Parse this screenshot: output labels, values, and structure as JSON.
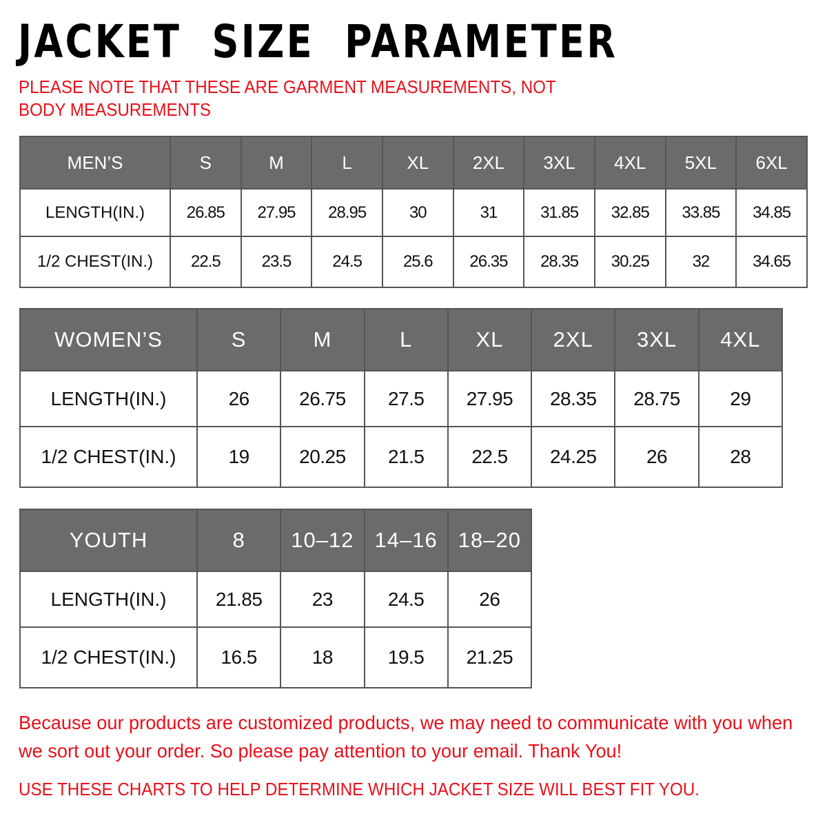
{
  "title": "JACKET  SIZE  PARAMETER",
  "note": "PLEASE NOTE THAT THESE ARE GARMENT MEASUREMENTS, NOT BODY MEASUREMENTS",
  "men": {
    "header": [
      "MEN’S",
      "S",
      "M",
      "L",
      "XL",
      "2XL",
      "3XL",
      "4XL",
      "5XL",
      "6XL"
    ],
    "rows": [
      [
        "LENGTH(IN.)",
        "26.85",
        "27.95",
        "28.95",
        "30",
        "31",
        "31.85",
        "32.85",
        "33.85",
        "34.85"
      ],
      [
        "1/2 CHEST(IN.)",
        "22.5",
        "23.5",
        "24.5",
        "25.6",
        "26.35",
        "28.35",
        "30.25",
        "32",
        "34.65"
      ]
    ]
  },
  "women": {
    "header": [
      "WOMEN’S",
      "S",
      "M",
      "L",
      "XL",
      "2XL",
      "3XL",
      "4XL"
    ],
    "rows": [
      [
        "LENGTH(IN.)",
        "26",
        "26.75",
        "27.5",
        "27.95",
        "28.35",
        "28.75",
        "29"
      ],
      [
        "1/2 CHEST(IN.)",
        "19",
        "20.25",
        "21.5",
        "22.5",
        "24.25",
        "26",
        "28"
      ]
    ]
  },
  "youth": {
    "header": [
      "YOUTH",
      "8",
      "10–12",
      "14–16",
      "18–20"
    ],
    "rows": [
      [
        "LENGTH(IN.)",
        "21.85",
        "23",
        "24.5",
        "26"
      ],
      [
        "1/2 CHEST(IN.)",
        "16.5",
        "18",
        "19.5",
        "21.25"
      ]
    ]
  },
  "footer": {
    "message": "Because our products are customized products, we may need to communicate with you when we sort out your order. So please pay attention to your email. Thank You!",
    "instruction": "USE THESE CHARTS TO HELP DETERMINE WHICH JACKET SIZE WILL BEST FIT YOU."
  },
  "colors": {
    "header_bg": "#6b6b6b",
    "accent_red": "#e8101a"
  }
}
